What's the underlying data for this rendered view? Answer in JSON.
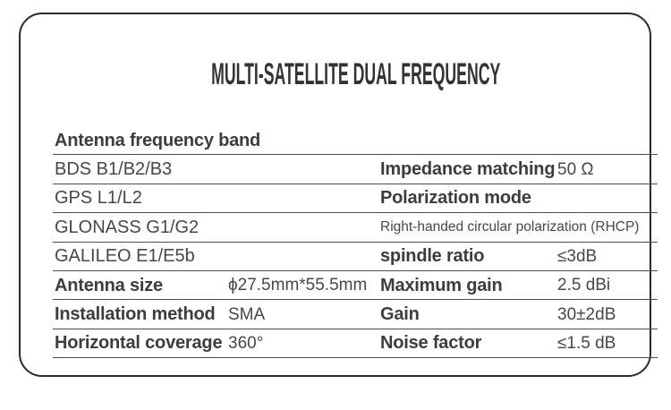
{
  "title": "MULTI-SATELLITE DUAL FREQUENCY",
  "colors": {
    "card_border": "#2b2b2b",
    "row_line": "#4d4d4d",
    "label_text": "#3d3d3d",
    "value_text": "#474747"
  },
  "table": {
    "rows": [
      {
        "left_label": "Antenna frequency band",
        "right_label": "",
        "right_value": ""
      },
      {
        "left_label": "BDS B1/B2/B3",
        "left_value": "",
        "right_label": "Impedance matching",
        "right_value": "50 Ω"
      },
      {
        "left_label": "GPS L1/L2",
        "left_value": "",
        "right_label": "Polarization mode",
        "right_value": ""
      },
      {
        "left_label": "GLONASS G1/G2",
        "left_value": "",
        "right_span": "Right-handed circular polarization (RHCP)"
      },
      {
        "left_label": "GALILEO E1/E5b",
        "left_value": "",
        "right_label": "spindle ratio",
        "right_value": "≤3dB"
      },
      {
        "left_label": "Antenna size",
        "left_value": "ϕ27.5mm*55.5mm",
        "right_label": "Maximum gain",
        "right_value": "2.5 dBi"
      },
      {
        "left_label": "Installation method",
        "left_value": "SMA",
        "right_label": "Gain",
        "right_value": "30±2dB"
      },
      {
        "left_label": "Horizontal coverage",
        "left_value": "360°",
        "right_label": "Noise factor",
        "right_value": "≤1.5 dB"
      }
    ]
  }
}
